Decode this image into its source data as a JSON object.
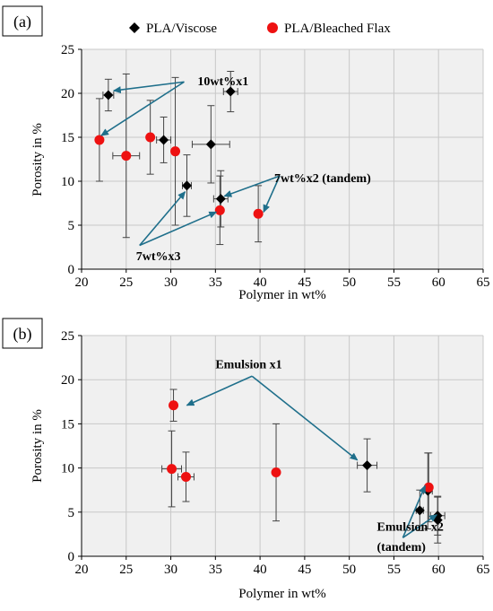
{
  "legend": {
    "viscose_label": "PLA/Viscose",
    "flax_label": "PLA/Bleached Flax"
  },
  "colors": {
    "viscose": "#000000",
    "flax": "#ee1111",
    "arrow": "#1f6f8b",
    "plot_bg": "#f0f0f0",
    "grid": "#c8c8c8"
  },
  "chart_data": [
    {
      "type": "scatter",
      "panel_label": "(a)",
      "xlabel": "Polymer in wt%",
      "ylabel": "Porosity in %",
      "xlim": [
        20,
        65
      ],
      "ylim": [
        0,
        25
      ],
      "xticks": [
        20,
        25,
        30,
        35,
        40,
        45,
        50,
        55,
        60,
        65
      ],
      "yticks": [
        0,
        5,
        10,
        15,
        20,
        25
      ],
      "grid": true,
      "series": [
        {
          "name": "PLA/Viscose",
          "marker": "diamond",
          "points": [
            {
              "x": 23.0,
              "y": 19.8,
              "xerr": 0.6,
              "yerr": 1.8
            },
            {
              "x": 36.7,
              "y": 20.2,
              "xerr": 0.8,
              "yerr": 2.3
            },
            {
              "x": 29.2,
              "y": 14.7,
              "xerr": 0.8,
              "yerr": 2.6
            },
            {
              "x": 34.5,
              "y": 14.2,
              "xerr": 2.1,
              "yerr": 4.4
            },
            {
              "x": 31.8,
              "y": 9.5,
              "xerr": 0.5,
              "yerr": 3.5
            },
            {
              "x": 35.6,
              "y": 8.0,
              "xerr": 0.8,
              "yerr": 3.2
            }
          ]
        },
        {
          "name": "PLA/Bleached Flax",
          "marker": "circle",
          "points": [
            {
              "x": 22.0,
              "y": 14.7,
              "xerr": 0.0,
              "yerr": 4.7
            },
            {
              "x": 25.0,
              "y": 12.9,
              "xerr": 1.5,
              "yerr": 9.3
            },
            {
              "x": 27.7,
              "y": 15.0,
              "xerr": 0.0,
              "yerr": 4.2
            },
            {
              "x": 30.5,
              "y": 13.4,
              "xerr": 0.0,
              "yerr": 8.4
            },
            {
              "x": 35.5,
              "y": 6.7,
              "xerr": 0.0,
              "yerr": 3.9
            },
            {
              "x": 39.8,
              "y": 6.3,
              "xerr": 0.0,
              "yerr": 3.2
            }
          ]
        }
      ],
      "annotations": [
        {
          "text": "10wt%x1",
          "tx": 33,
          "ty": 20.9,
          "anchor": "start",
          "from": [
            31.5,
            21.3
          ],
          "to": [
            [
              23.6,
              20.3
            ],
            [
              22.2,
              15.2
            ]
          ]
        },
        {
          "text": "7wt%x2 (tandem)",
          "tx": 41.6,
          "ty": 9.9,
          "anchor": "start",
          "from": [
            42.2,
            10.6
          ],
          "to": [
            [
              36.0,
              8.3
            ],
            [
              40.4,
              6.5
            ]
          ]
        },
        {
          "text": "7wt%x3",
          "tx": 28.6,
          "ty": 1.0,
          "anchor": "middle",
          "from": [
            26.5,
            2.7
          ],
          "to": [
            [
              31.6,
              8.8
            ],
            [
              35.1,
              6.5
            ]
          ]
        }
      ]
    },
    {
      "type": "scatter",
      "panel_label": "(b)",
      "xlabel": "Polymer in wt%",
      "ylabel": "Porosity in %",
      "xlim": [
        20,
        65
      ],
      "ylim": [
        0,
        25
      ],
      "xticks": [
        20,
        25,
        30,
        35,
        40,
        45,
        50,
        55,
        60,
        65
      ],
      "yticks": [
        0,
        5,
        10,
        15,
        20,
        25
      ],
      "grid": true,
      "series": [
        {
          "name": "PLA/Viscose",
          "marker": "diamond",
          "points": [
            {
              "x": 52.0,
              "y": 10.3,
              "xerr": 1.1,
              "yerr": 3.0
            },
            {
              "x": 57.9,
              "y": 5.2,
              "xerr": 0.4,
              "yerr": 2.3
            },
            {
              "x": 58.8,
              "y": 7.4,
              "xerr": 0.5,
              "yerr": 4.3
            },
            {
              "x": 59.9,
              "y": 4.6,
              "xerr": 0.8,
              "yerr": 2.2
            },
            {
              "x": 59.9,
              "y": 4.1,
              "xerr": 0.0,
              "yerr": 2.6
            }
          ]
        },
        {
          "name": "PLA/Bleached Flax",
          "marker": "circle",
          "points": [
            {
              "x": 30.3,
              "y": 17.1,
              "xerr": 0.0,
              "yerr": 1.8
            },
            {
              "x": 30.1,
              "y": 9.9,
              "xerr": 1.1,
              "yerr": 4.3
            },
            {
              "x": 31.7,
              "y": 9.0,
              "xerr": 0.9,
              "yerr": 2.8
            },
            {
              "x": 41.8,
              "y": 9.5,
              "xerr": 0.0,
              "yerr": 5.5
            },
            {
              "x": 58.9,
              "y": 7.8,
              "xerr": 0.0,
              "yerr": 3.9
            }
          ]
        }
      ],
      "annotations": [
        {
          "text": "Emulsion x1",
          "tx": 35,
          "ty": 21.3,
          "anchor": "start",
          "from": [
            39.1,
            20.4
          ],
          "to": [
            [
              31.8,
              17.1
            ],
            [
              50.9,
              10.9
            ]
          ]
        },
        {
          "text": "Emulsion x2",
          "tx": 53.1,
          "ty": 2.9,
          "anchor": "start",
          "from": [
            56.0,
            2.1
          ],
          "to": [
            [
              58.5,
              8.0
            ],
            [
              59.8,
              4.7
            ]
          ]
        },
        {
          "text": "(tandem)",
          "tx": 53.1,
          "ty": 0.6,
          "anchor": "start"
        }
      ]
    }
  ]
}
